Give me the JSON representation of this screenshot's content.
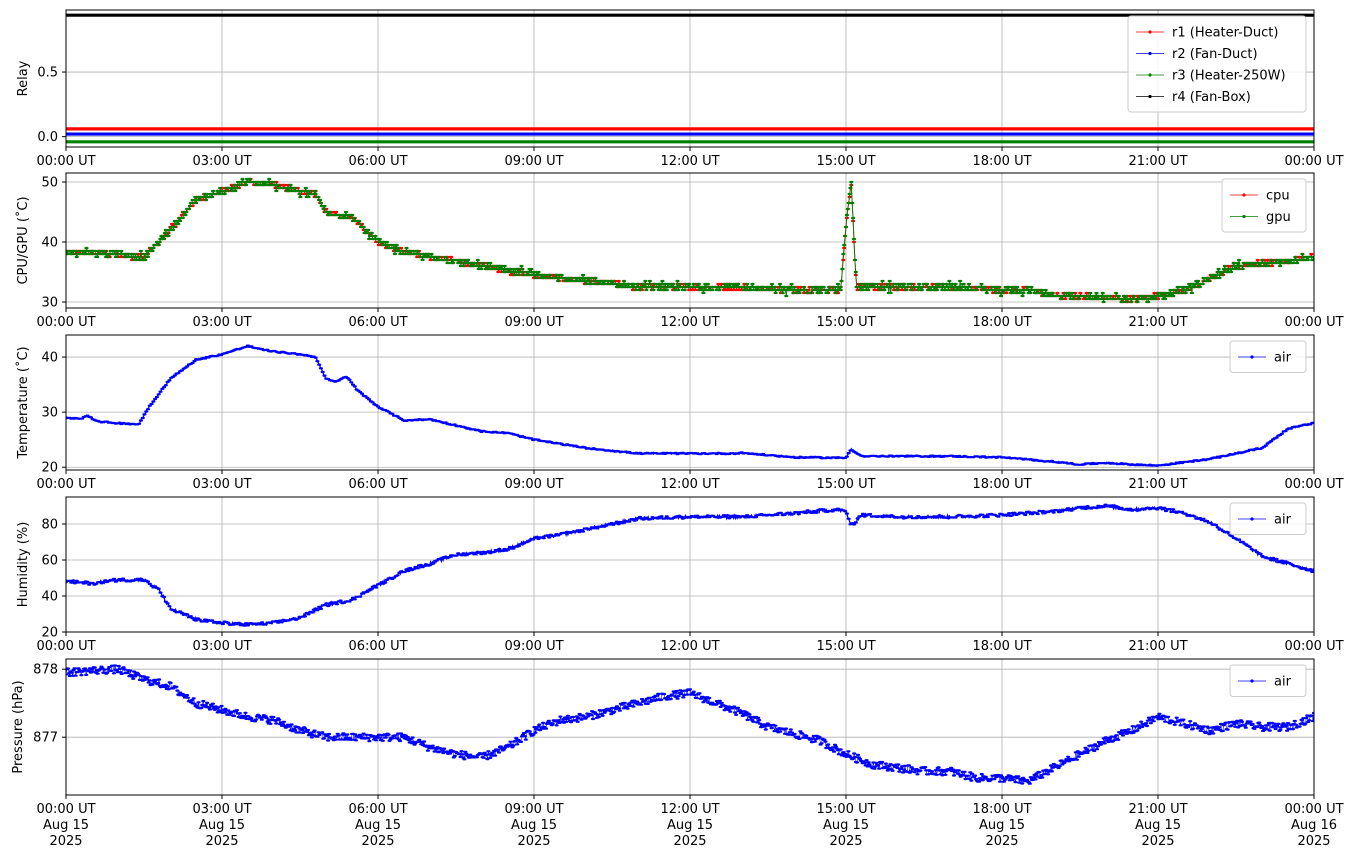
{
  "chart_data": [
    {
      "type": "line",
      "ylabel": "Relay",
      "ylim": [
        -0.08,
        0.98
      ],
      "yticks": [
        0.0,
        0.5
      ],
      "ytick_labels": [
        "0.0",
        "0.5"
      ],
      "x_range": [
        "2025-08-15 00:00",
        "2025-08-16 00:00"
      ],
      "xtick_labels": [
        "00:00 UT",
        "03:00 UT",
        "06:00 UT",
        "09:00 UT",
        "12:00 UT",
        "15:00 UT",
        "18:00 UT",
        "21:00 UT",
        "00:00 UT"
      ],
      "grid": true,
      "legend": "upper-right",
      "series": [
        {
          "name": "r1 (Heater-Duct)",
          "color": "#ff0000",
          "x": [
            0,
            24
          ],
          "y": [
            0.06,
            0.06
          ]
        },
        {
          "name": "r2 (Fan-Duct)",
          "color": "#0000ff",
          "x": [
            0,
            24
          ],
          "y": [
            0.02,
            0.02
          ]
        },
        {
          "name": "r3 (Heater-250W)",
          "color": "#008000",
          "x": [
            0,
            24
          ],
          "y": [
            -0.04,
            -0.04
          ]
        },
        {
          "name": "r4 (Fan-Box)",
          "color": "#000000",
          "x": [
            0,
            24
          ],
          "y": [
            0.94,
            0.94
          ]
        }
      ]
    },
    {
      "type": "line",
      "ylabel": "CPU/GPU (˚C)",
      "ylim": [
        29,
        51.5
      ],
      "yticks": [
        30,
        40,
        50
      ],
      "ytick_labels": [
        "30",
        "40",
        "50"
      ],
      "x_range": [
        "2025-08-15 00:00",
        "2025-08-16 00:00"
      ],
      "xtick_labels": [
        "00:00 UT",
        "03:00 UT",
        "06:00 UT",
        "09:00 UT",
        "12:00 UT",
        "15:00 UT",
        "18:00 UT",
        "21:00 UT",
        "00:00 UT"
      ],
      "grid": true,
      "legend": "upper-right",
      "series": [
        {
          "name": "cpu",
          "color": "#ff0000",
          "x": [
            0,
            1.0,
            1.5,
            2.0,
            2.5,
            3.0,
            3.5,
            4.0,
            4.5,
            4.8,
            5.0,
            5.5,
            6.0,
            6.5,
            7.0,
            8.0,
            9.0,
            10.0,
            11.0,
            12.0,
            13.0,
            14.0,
            14.9,
            15.0,
            15.1,
            15.2,
            16.0,
            17.0,
            18.0,
            18.5,
            19.0,
            20.0,
            20.5,
            21.0,
            21.5,
            22.0,
            22.5,
            23.0,
            23.5,
            24
          ],
          "y": [
            38.3,
            38.0,
            37.4,
            42.0,
            47.0,
            48.5,
            50.0,
            49.5,
            48.5,
            48.0,
            45.0,
            44.0,
            40.0,
            38.5,
            37.5,
            36.0,
            34.5,
            33.5,
            32.5,
            32.5,
            32.5,
            32.0,
            32.0,
            43.0,
            50.0,
            32.5,
            32.5,
            32.5,
            32.0,
            32.0,
            31.0,
            30.8,
            30.5,
            31.0,
            32.0,
            34.0,
            36.0,
            36.5,
            36.8,
            37.5
          ]
        },
        {
          "name": "gpu",
          "color": "#008000",
          "x": [
            0,
            1.0,
            1.5,
            2.0,
            2.5,
            3.0,
            3.5,
            4.0,
            4.5,
            4.8,
            5.0,
            5.5,
            6.0,
            6.5,
            7.0,
            8.0,
            9.0,
            10.0,
            11.0,
            12.0,
            13.0,
            14.0,
            14.9,
            15.0,
            15.1,
            15.2,
            16.0,
            17.0,
            18.0,
            18.5,
            19.0,
            20.0,
            20.5,
            21.0,
            21.5,
            22.0,
            22.5,
            23.0,
            23.5,
            24
          ],
          "y": [
            38.3,
            38.0,
            37.4,
            42.0,
            47.0,
            48.5,
            50.0,
            49.5,
            48.5,
            48.0,
            45.0,
            44.0,
            40.0,
            38.5,
            37.5,
            36.0,
            34.5,
            33.5,
            32.5,
            32.5,
            32.5,
            32.0,
            32.0,
            43.0,
            50.0,
            32.5,
            32.5,
            32.5,
            32.0,
            32.0,
            31.0,
            30.8,
            30.5,
            31.0,
            32.0,
            34.0,
            36.0,
            36.5,
            36.8,
            37.5
          ]
        }
      ]
    },
    {
      "type": "line",
      "ylabel": "Temperature (˚C)",
      "ylim": [
        19.5,
        44
      ],
      "yticks": [
        20,
        30,
        40
      ],
      "ytick_labels": [
        "20",
        "30",
        "40"
      ],
      "x_range": [
        "2025-08-15 00:00",
        "2025-08-16 00:00"
      ],
      "xtick_labels": [
        "00:00 UT",
        "03:00 UT",
        "06:00 UT",
        "09:00 UT",
        "12:00 UT",
        "15:00 UT",
        "18:00 UT",
        "21:00 UT",
        "00:00 UT"
      ],
      "grid": true,
      "legend": "upper-right",
      "series": [
        {
          "name": "air",
          "color": "#0000ff",
          "x": [
            0,
            0.3,
            0.4,
            0.6,
            1.0,
            1.4,
            1.6,
            2.0,
            2.5,
            3.0,
            3.5,
            3.7,
            4.0,
            4.5,
            4.8,
            5.0,
            5.2,
            5.4,
            5.6,
            6.0,
            6.5,
            7.0,
            8.0,
            8.5,
            9.0,
            10.0,
            11.0,
            12.0,
            12.8,
            13.0,
            14.0,
            15.0,
            15.1,
            15.3,
            16.0,
            17.0,
            18.0,
            19.0,
            19.5,
            20.0,
            20.5,
            21.0,
            22.0,
            23.0,
            23.5,
            24
          ],
          "y": [
            29.0,
            28.8,
            29.5,
            28.3,
            28.0,
            27.8,
            31.0,
            36.0,
            39.5,
            40.5,
            42.0,
            41.5,
            41.0,
            40.5,
            40.0,
            36.0,
            35.5,
            36.5,
            34.0,
            31.0,
            28.5,
            28.7,
            26.5,
            26.2,
            25.0,
            23.5,
            22.5,
            22.5,
            22.5,
            22.6,
            21.8,
            21.7,
            23.3,
            22.0,
            22.0,
            22.0,
            21.8,
            21.0,
            20.5,
            20.8,
            20.5,
            20.3,
            21.5,
            23.5,
            27.0,
            28.0
          ]
        }
      ]
    },
    {
      "type": "line",
      "ylabel": "Humidity (%)",
      "ylim": [
        20,
        95
      ],
      "yticks": [
        20,
        40,
        60,
        80
      ],
      "ytick_labels": [
        "20",
        "40",
        "60",
        "80"
      ],
      "x_range": [
        "2025-08-15 00:00",
        "2025-08-16 00:00"
      ],
      "xtick_labels": [
        "00:00 UT",
        "03:00 UT",
        "06:00 UT",
        "09:00 UT",
        "12:00 UT",
        "15:00 UT",
        "18:00 UT",
        "21:00 UT",
        "00:00 UT"
      ],
      "grid": true,
      "legend": "upper-right",
      "series": [
        {
          "name": "air",
          "color": "#0000ff",
          "x": [
            0,
            0.5,
            1.0,
            1.5,
            1.8,
            2.0,
            2.5,
            3.0,
            3.5,
            4.0,
            4.5,
            5.0,
            5.5,
            6.0,
            6.5,
            7.0,
            7.5,
            8.0,
            8.5,
            9.0,
            9.5,
            10.0,
            11.0,
            12.0,
            13.0,
            14.0,
            14.8,
            15.0,
            15.1,
            15.3,
            16.0,
            17.0,
            18.0,
            19.0,
            19.5,
            20.0,
            20.5,
            21.0,
            21.5,
            22.0,
            22.5,
            23.0,
            23.5,
            24
          ],
          "y": [
            48,
            47,
            49,
            49,
            43,
            33,
            27,
            25,
            24,
            25,
            28,
            35,
            38,
            46,
            54,
            58,
            63,
            64,
            66,
            72,
            74,
            77,
            83,
            84,
            84,
            86,
            88,
            87,
            79,
            85,
            84,
            84,
            85,
            87,
            89,
            90,
            88,
            89,
            86,
            81,
            72,
            62,
            58,
            54
          ]
        }
      ]
    },
    {
      "type": "scatter",
      "ylabel": "Pressure (hPa)",
      "ylim": [
        876.15,
        878.15
      ],
      "yticks": [
        877,
        878
      ],
      "ytick_labels": [
        "877",
        "878"
      ],
      "x_range": [
        "2025-08-15 00:00",
        "2025-08-16 00:00"
      ],
      "xtick_labels": [
        "00:00 UT\nAug 15\n2025",
        "03:00 UT\nAug 15\n2025",
        "06:00 UT\nAug 15\n2025",
        "09:00 UT\nAug 15\n2025",
        "12:00 UT\nAug 15\n2025",
        "15:00 UT\nAug 15\n2025",
        "18:00 UT\nAug 15\n2025",
        "21:00 UT\nAug 15\n2025",
        "00:00 UT\nAug 16\n2025"
      ],
      "grid": true,
      "legend": "upper-right",
      "series": [
        {
          "name": "air",
          "color": "#0000ff",
          "x": [
            0,
            0.5,
            1.0,
            1.5,
            2.0,
            2.5,
            3.0,
            3.5,
            4.0,
            4.5,
            5.0,
            5.5,
            6.0,
            6.5,
            7.0,
            7.5,
            8.0,
            8.5,
            9.0,
            9.5,
            10.0,
            10.5,
            11.0,
            11.5,
            12.0,
            12.5,
            13.0,
            13.5,
            14.0,
            14.5,
            15.0,
            15.5,
            16.0,
            16.5,
            17.0,
            17.5,
            18.0,
            18.5,
            19.0,
            19.5,
            20.0,
            20.5,
            21.0,
            21.5,
            22.0,
            22.5,
            23.0,
            23.5,
            24
          ],
          "y": [
            877.95,
            877.98,
            878.0,
            877.85,
            877.75,
            877.5,
            877.4,
            877.3,
            877.25,
            877.1,
            877.0,
            877.0,
            877.0,
            877.0,
            876.85,
            876.75,
            876.7,
            876.85,
            877.1,
            877.25,
            877.3,
            877.4,
            877.5,
            877.6,
            877.65,
            877.5,
            877.35,
            877.15,
            877.05,
            876.95,
            876.75,
            876.6,
            876.55,
            876.5,
            876.5,
            876.4,
            876.4,
            876.35,
            876.55,
            876.75,
            876.95,
            877.1,
            877.3,
            877.2,
            877.1,
            877.2,
            877.15,
            877.15,
            877.3
          ]
        }
      ]
    }
  ]
}
